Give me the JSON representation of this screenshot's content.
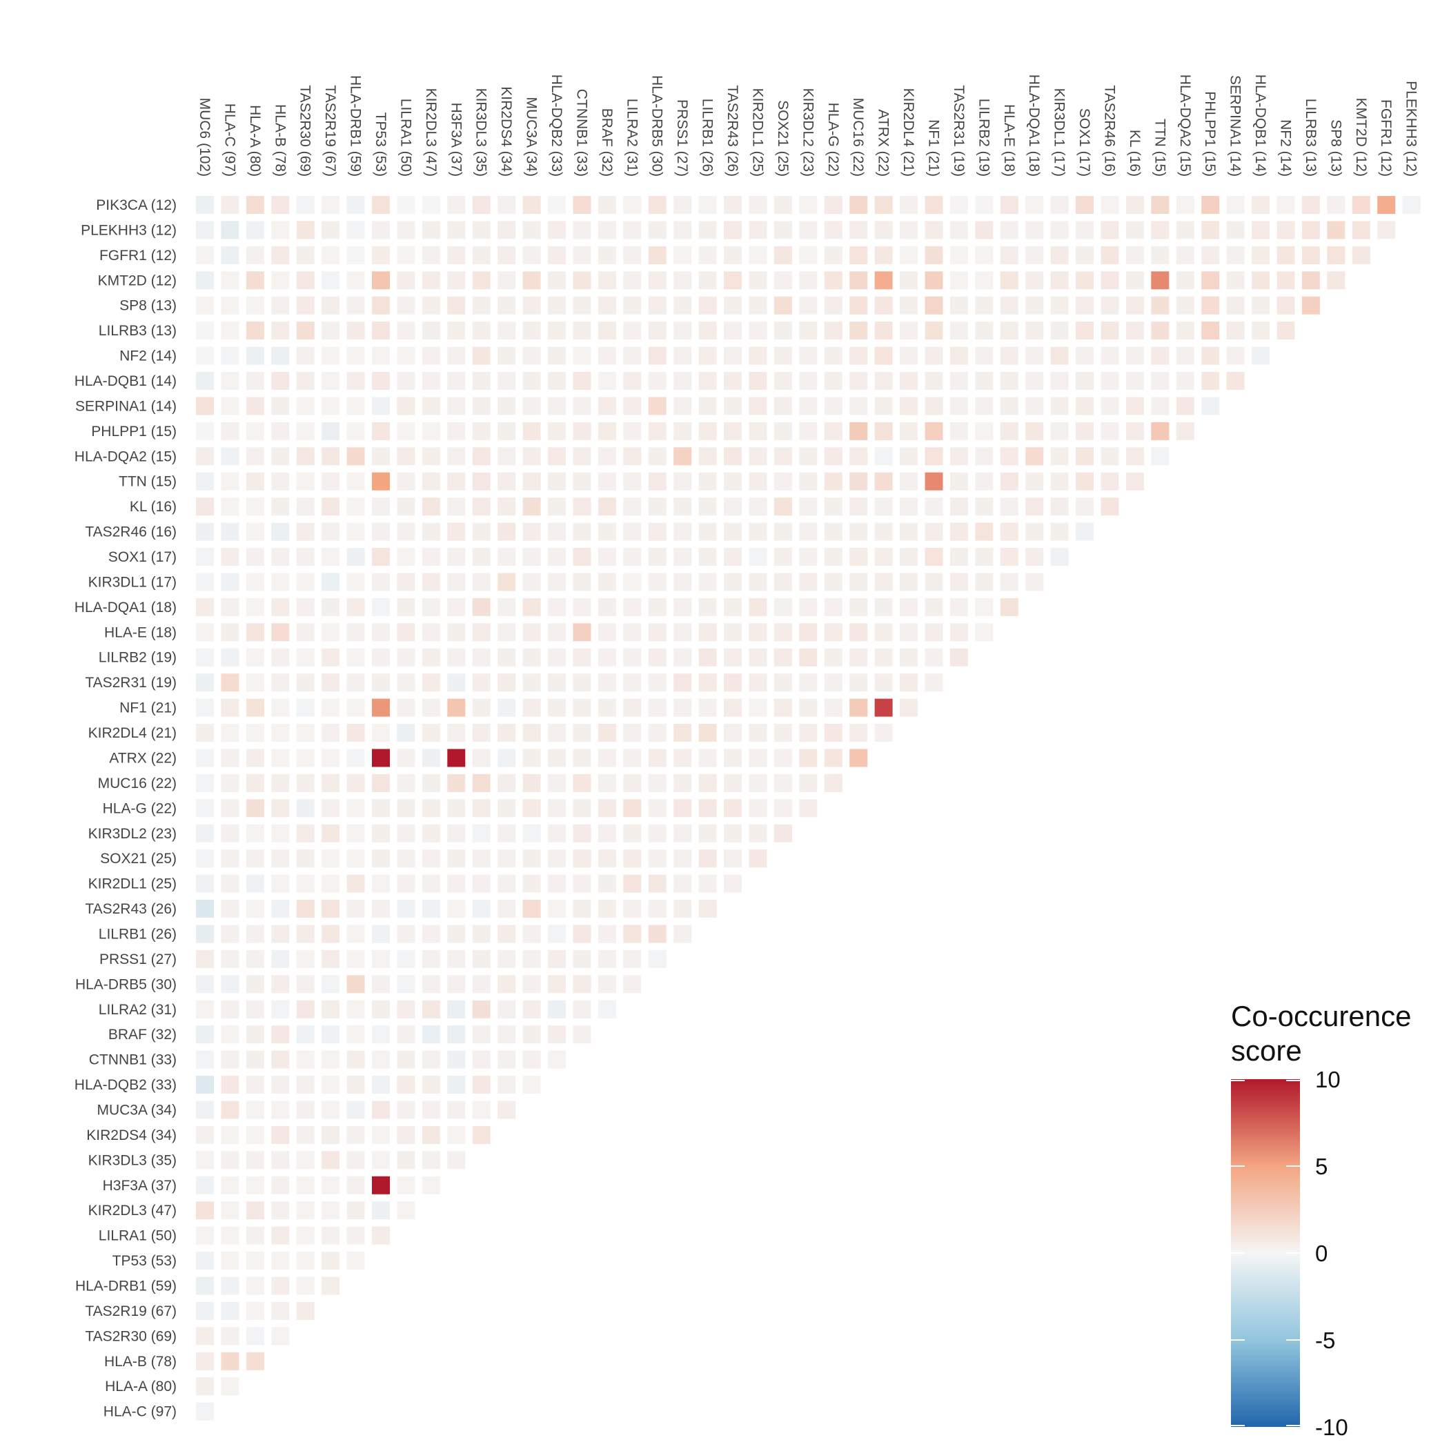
{
  "chart_data": {
    "type": "heatmap",
    "title": "",
    "xlabel": "",
    "ylabel": "",
    "col_labels": [
      "MUC6 (102)",
      "HLA-C (97)",
      "HLA-A (80)",
      "HLA-B (78)",
      "TAS2R30 (69)",
      "TAS2R19 (67)",
      "HLA-DRB1 (59)",
      "TP53 (53)",
      "LILRA1 (50)",
      "KIR2DL3 (47)",
      "H3F3A (37)",
      "KIR3DL3 (35)",
      "KIR2DS4 (34)",
      "MUC3A (34)",
      "HLA-DQB2 (33)",
      "CTNNB1 (33)",
      "BRAF (32)",
      "LILRA2 (31)",
      "HLA-DRB5 (30)",
      "PRSS1 (27)",
      "LILRB1 (26)",
      "TAS2R43 (26)",
      "KIR2DL1 (25)",
      "SOX21 (25)",
      "KIR3DL2 (23)",
      "HLA-G (22)",
      "MUC16 (22)",
      "ATRX (22)",
      "KIR2DL4 (21)",
      "NF1 (21)",
      "TAS2R31 (19)",
      "LILRB2 (19)",
      "HLA-E (18)",
      "HLA-DQA1 (18)",
      "KIR3DL1 (17)",
      "SOX1 (17)",
      "TAS2R46 (16)",
      "KL (16)",
      "TTN (15)",
      "HLA-DQA2 (15)",
      "PHLPP1 (15)",
      "SERPINA1 (14)",
      "HLA-DQB1 (14)",
      "NF2 (14)",
      "LILRB3 (13)",
      "SP8 (13)",
      "KMT2D (12)",
      "FGFR1 (12)",
      "PLEKHH3 (12)"
    ],
    "row_labels": [
      "PIK3CA (12)",
      "PLEKHH3 (12)",
      "FGFR1 (12)",
      "KMT2D (12)",
      "SP8 (13)",
      "LILRB3 (13)",
      "NF2 (14)",
      "HLA-DQB1 (14)",
      "SERPINA1 (14)",
      "PHLPP1 (15)",
      "HLA-DQA2 (15)",
      "TTN (15)",
      "KL (16)",
      "TAS2R46 (16)",
      "SOX1 (17)",
      "KIR3DL1 (17)",
      "HLA-DQA1 (18)",
      "HLA-E (18)",
      "LILRB2 (19)",
      "TAS2R31 (19)",
      "NF1 (21)",
      "KIR2DL4 (21)",
      "ATRX (22)",
      "MUC16 (22)",
      "HLA-G (22)",
      "KIR3DL2 (23)",
      "SOX21 (25)",
      "KIR2DL1 (25)",
      "TAS2R43 (26)",
      "LILRB1 (26)",
      "PRSS1 (27)",
      "HLA-DRB5 (30)",
      "LILRA2 (31)",
      "BRAF (32)",
      "CTNNB1 (33)",
      "HLA-DQB2 (33)",
      "MUC3A (34)",
      "KIR2DS4 (34)",
      "KIR3DL3 (35)",
      "H3F3A (37)",
      "KIR2DL3 (47)",
      "LILRA1 (50)",
      "TP53 (53)",
      "HLA-DRB1 (59)",
      "TAS2R19 (67)",
      "TAS2R30 (69)",
      "HLA-B (78)",
      "HLA-A (80)",
      "HLA-C (97)"
    ],
    "values": [
      [
        -0.5,
        0.5,
        1.5,
        0.8,
        -0.2,
        0.2,
        -0.3,
        1.2,
        0.0,
        0.0,
        0.3,
        0.8,
        0.3,
        0.9,
        0.0,
        1.5,
        0.4,
        0.2,
        1.0,
        0.3,
        0.2,
        0.5,
        0.3,
        0.4,
        0.2,
        0.7,
        1.8,
        1.2,
        0.3,
        1.2,
        0.1,
        0.1,
        0.8,
        0.2,
        0.3,
        1.5,
        0.2,
        0.6,
        1.8,
        0.2,
        2.3,
        0.2,
        0.6,
        0.2,
        0.8,
        0.3,
        1.5,
        4.5,
        -0.2
      ],
      [
        -0.3,
        -0.8,
        -0.3,
        0.2,
        0.9,
        0.4,
        -0.2,
        0.3,
        0.3,
        0.4,
        0.4,
        0.4,
        0.5,
        0.4,
        0.5,
        0.3,
        0.3,
        0.3,
        0.4,
        0.3,
        0.4,
        0.7,
        0.5,
        0.4,
        0.3,
        0.5,
        0.5,
        0.5,
        0.3,
        0.6,
        0.3,
        0.8,
        0.3,
        0.3,
        0.3,
        0.3,
        0.7,
        0.4,
        0.7,
        0.4,
        0.9,
        0.4,
        0.7,
        0.7,
        1.0,
        1.7,
        1.0,
        0.5
      ],
      [
        0.2,
        -0.5,
        0.3,
        0.7,
        0.4,
        0.2,
        0.0,
        0.6,
        0.2,
        0.3,
        0.5,
        0.4,
        0.5,
        0.3,
        0.5,
        0.3,
        0.4,
        0.3,
        1.2,
        0.2,
        0.3,
        0.4,
        0.2,
        0.9,
        0.2,
        0.4,
        1.1,
        0.8,
        0.2,
        1.3,
        0.2,
        0.2,
        0.5,
        0.3,
        0.7,
        0.4,
        0.9,
        0.3,
        0.4,
        0.3,
        0.5,
        0.3,
        0.6,
        0.9,
        1.0,
        1.1,
        0.8
      ],
      [
        -0.5,
        0.2,
        1.5,
        0.2,
        0.8,
        -0.2,
        0.2,
        3.0,
        0.5,
        0.6,
        0.5,
        1.0,
        0.3,
        1.4,
        0.4,
        0.9,
        0.5,
        0.3,
        0.5,
        0.3,
        0.4,
        1.1,
        0.4,
        0.3,
        0.3,
        1.0,
        1.8,
        4.5,
        0.4,
        2.3,
        0.2,
        0.2,
        0.9,
        0.5,
        0.7,
        0.9,
        0.8,
        0.4,
        6.0,
        0.4,
        2.0,
        0.4,
        0.9,
        0.9,
        1.8,
        0.8
      ],
      [
        0.2,
        0.2,
        0.2,
        0.3,
        0.7,
        0.5,
        0.3,
        1.2,
        0.3,
        0.4,
        0.8,
        0.4,
        0.4,
        0.5,
        0.4,
        0.4,
        0.5,
        0.4,
        0.5,
        0.4,
        0.7,
        0.4,
        0.4,
        1.4,
        0.3,
        0.5,
        1.2,
        0.9,
        0.4,
        2.0,
        0.4,
        0.4,
        0.5,
        0.4,
        0.4,
        0.5,
        0.5,
        0.6,
        1.3,
        0.4,
        1.5,
        0.5,
        0.4,
        0.8,
        2.3
      ],
      [
        0.0,
        0.2,
        1.5,
        0.6,
        1.4,
        0.3,
        0.7,
        1.0,
        0.3,
        0.4,
        0.4,
        0.4,
        0.3,
        0.4,
        0.4,
        0.4,
        0.6,
        0.3,
        0.5,
        0.3,
        0.6,
        0.3,
        0.3,
        0.4,
        0.4,
        0.7,
        1.3,
        1.0,
        0.3,
        1.2,
        0.3,
        0.4,
        0.5,
        0.4,
        0.4,
        0.9,
        0.8,
        0.6,
        1.3,
        0.4,
        2.0,
        0.6,
        0.4,
        0.9
      ],
      [
        0.0,
        -0.2,
        -0.5,
        -0.5,
        0.3,
        0.2,
        0.2,
        0.2,
        0.2,
        0.3,
        0.3,
        0.9,
        0.4,
        0.3,
        0.4,
        0.2,
        0.3,
        0.3,
        0.8,
        0.3,
        0.5,
        0.3,
        0.6,
        0.4,
        0.3,
        0.4,
        0.7,
        1.1,
        0.3,
        0.5,
        0.6,
        0.3,
        0.5,
        0.3,
        0.8,
        0.3,
        0.3,
        0.3,
        0.7,
        0.3,
        0.9,
        0.3,
        -0.3
      ],
      [
        -0.5,
        0.2,
        0.3,
        0.8,
        0.5,
        0.2,
        0.5,
        0.8,
        0.3,
        0.3,
        0.3,
        0.4,
        0.3,
        0.4,
        0.4,
        0.8,
        0.2,
        0.5,
        0.3,
        0.3,
        0.5,
        0.6,
        0.8,
        0.4,
        0.3,
        0.4,
        0.5,
        0.5,
        0.6,
        0.4,
        0.3,
        0.4,
        0.4,
        0.3,
        0.3,
        0.4,
        0.3,
        0.3,
        0.3,
        0.3,
        0.9,
        0.9
      ],
      [
        1.2,
        0.2,
        0.8,
        0.4,
        0.2,
        0.2,
        0.2,
        -0.3,
        0.6,
        0.4,
        0.3,
        0.4,
        0.4,
        0.3,
        0.3,
        0.3,
        0.6,
        0.5,
        1.6,
        0.3,
        0.4,
        0.4,
        0.7,
        0.5,
        0.3,
        0.3,
        0.3,
        0.4,
        0.6,
        0.6,
        0.3,
        0.3,
        0.4,
        0.3,
        0.4,
        0.6,
        0.3,
        0.7,
        0.3,
        0.8,
        -0.3
      ],
      [
        0.0,
        0.3,
        0.2,
        0.3,
        0.2,
        -0.6,
        0.2,
        0.9,
        0.2,
        0.2,
        0.3,
        0.4,
        0.4,
        0.8,
        0.4,
        0.7,
        0.6,
        0.3,
        0.6,
        0.4,
        0.6,
        0.6,
        0.5,
        0.4,
        0.3,
        0.6,
        2.6,
        1.2,
        0.4,
        2.3,
        0.3,
        0.2,
        0.7,
        0.8,
        0.3,
        0.7,
        0.3,
        0.6,
        2.8,
        0.6
      ],
      [
        0.5,
        -0.3,
        0.3,
        0.4,
        0.8,
        0.8,
        1.7,
        0.4,
        0.6,
        0.4,
        0.3,
        0.8,
        0.3,
        0.5,
        0.7,
        0.5,
        0.3,
        0.6,
        0.4,
        2.2,
        0.6,
        0.8,
        0.5,
        0.6,
        0.4,
        0.7,
        0.6,
        -0.2,
        0.4,
        1.1,
        0.5,
        0.3,
        0.7,
        1.6,
        0.4,
        0.9,
        0.4,
        0.6,
        -0.2
      ],
      [
        -0.3,
        0.2,
        0.6,
        0.3,
        0.2,
        0.3,
        0.2,
        5.0,
        0.3,
        0.5,
        0.6,
        0.8,
        0.5,
        0.6,
        0.4,
        0.4,
        0.3,
        0.3,
        0.7,
        0.3,
        0.4,
        0.4,
        0.5,
        0.3,
        0.4,
        0.9,
        1.3,
        1.5,
        0.3,
        6.0,
        0.4,
        0.3,
        0.8,
        0.4,
        0.4,
        1.0,
        0.7,
        0.7
      ],
      [
        0.8,
        0.2,
        0.2,
        0.4,
        0.3,
        0.8,
        0.2,
        0.3,
        0.4,
        0.9,
        0.3,
        0.7,
        0.6,
        1.3,
        0.4,
        0.7,
        0.9,
        0.3,
        0.4,
        0.4,
        0.4,
        0.3,
        0.3,
        1.2,
        0.3,
        0.4,
        0.5,
        0.3,
        0.3,
        0.3,
        0.5,
        0.4,
        0.3,
        0.7,
        0.5,
        0.3,
        1.0
      ],
      [
        -0.4,
        -0.4,
        0.2,
        -0.5,
        0.5,
        0.3,
        0.2,
        0.3,
        0.3,
        0.4,
        0.7,
        0.4,
        0.8,
        0.5,
        0.3,
        0.4,
        0.4,
        0.3,
        0.5,
        0.3,
        0.4,
        0.4,
        0.4,
        0.4,
        0.3,
        0.4,
        0.4,
        0.4,
        0.4,
        0.5,
        0.7,
        1.1,
        0.7,
        0.4,
        0.4,
        -0.3
      ],
      [
        -0.2,
        0.5,
        0.3,
        0.3,
        0.3,
        0.2,
        -0.4,
        1.0,
        0.2,
        0.3,
        0.3,
        0.4,
        0.3,
        0.3,
        0.3,
        0.8,
        0.3,
        0.3,
        0.4,
        0.3,
        0.4,
        0.5,
        -0.2,
        0.4,
        0.3,
        0.4,
        0.6,
        0.5,
        0.4,
        1.1,
        0.4,
        0.4,
        0.7,
        0.5,
        -0.3
      ],
      [
        -0.2,
        -0.3,
        0.2,
        0.2,
        0.2,
        -0.5,
        0.2,
        0.3,
        0.5,
        0.6,
        0.3,
        0.3,
        1.2,
        0.3,
        0.3,
        0.4,
        0.4,
        0.2,
        0.3,
        0.3,
        0.3,
        0.4,
        0.4,
        0.5,
        0.5,
        0.4,
        0.4,
        0.5,
        0.4,
        0.4,
        0.5,
        0.4,
        0.3,
        0.3
      ],
      [
        0.6,
        0.3,
        0.2,
        0.6,
        0.3,
        0.4,
        0.6,
        -0.2,
        0.4,
        0.3,
        0.3,
        1.3,
        0.3,
        0.9,
        0.3,
        0.3,
        0.4,
        0.3,
        0.4,
        0.3,
        0.4,
        0.4,
        0.8,
        0.3,
        0.3,
        0.3,
        0.4,
        0.4,
        0.3,
        0.4,
        0.3,
        0.2,
        1.2
      ],
      [
        0.2,
        0.4,
        1.0,
        1.5,
        0.3,
        0.2,
        0.3,
        0.3,
        0.7,
        0.3,
        0.4,
        0.6,
        0.3,
        0.5,
        0.3,
        2.3,
        0.3,
        0.3,
        0.5,
        0.3,
        0.6,
        0.4,
        0.6,
        0.6,
        0.8,
        0.6,
        0.8,
        0.4,
        0.3,
        0.5,
        0.5,
        0.2
      ],
      [
        -0.2,
        -0.3,
        0.2,
        0.3,
        0.2,
        0.6,
        0.2,
        0.3,
        0.3,
        0.4,
        0.3,
        0.3,
        0.4,
        0.4,
        0.3,
        0.5,
        0.3,
        0.3,
        0.5,
        0.3,
        0.8,
        0.5,
        0.5,
        0.7,
        0.9,
        0.4,
        0.5,
        0.4,
        0.4,
        0.3,
        0.8
      ],
      [
        -0.5,
        1.6,
        0.2,
        0.3,
        0.4,
        0.6,
        0.3,
        0.4,
        0.3,
        0.6,
        -0.4,
        0.5,
        0.6,
        0.4,
        0.4,
        0.4,
        0.3,
        0.3,
        0.3,
        0.8,
        0.7,
        0.8,
        0.5,
        0.4,
        0.3,
        0.3,
        0.4,
        0.4,
        0.6,
        0.3
      ],
      [
        -0.2,
        0.6,
        1.2,
        0.2,
        -0.2,
        0.2,
        0.2,
        5.5,
        0.3,
        0.3,
        3.0,
        0.4,
        -0.3,
        0.5,
        0.4,
        0.4,
        0.4,
        0.5,
        0.3,
        0.3,
        0.3,
        0.6,
        0.2,
        0.6,
        0.4,
        0.3,
        2.6,
        8.5,
        0.6
      ],
      [
        0.4,
        0.2,
        0.2,
        0.2,
        0.2,
        0.3,
        0.8,
        0.2,
        -0.5,
        0.4,
        0.3,
        0.5,
        0.6,
        0.6,
        0.3,
        0.4,
        0.8,
        0.3,
        0.3,
        0.9,
        1.2,
        0.3,
        0.4,
        0.4,
        0.5,
        0.8,
        0.5,
        0.3
      ],
      [
        -0.2,
        0.3,
        0.5,
        0.2,
        0.2,
        0.2,
        -0.2,
        10.0,
        0.3,
        -0.4,
        10.0,
        0.3,
        -0.3,
        0.4,
        0.4,
        0.4,
        0.3,
        0.3,
        0.6,
        0.5,
        0.3,
        0.4,
        0.3,
        0.3,
        0.9,
        1.0,
        3.0
      ],
      [
        -0.2,
        0.3,
        0.6,
        0.4,
        0.4,
        0.6,
        0.6,
        1.0,
        0.3,
        0.4,
        1.3,
        1.4,
        0.5,
        0.8,
        0.3,
        0.9,
        0.3,
        0.4,
        0.3,
        0.4,
        0.6,
        0.4,
        0.3,
        0.3,
        0.4,
        0.7
      ],
      [
        -0.2,
        0.3,
        1.3,
        0.6,
        -0.4,
        0.3,
        0.2,
        0.4,
        0.4,
        0.4,
        0.4,
        0.6,
        0.4,
        0.7,
        0.3,
        0.4,
        0.7,
        1.2,
        0.3,
        0.8,
        0.8,
        0.8,
        0.3,
        0.3,
        0.5
      ],
      [
        -0.3,
        0.3,
        0.2,
        0.2,
        0.6,
        0.8,
        0.2,
        0.4,
        0.3,
        0.4,
        0.3,
        -0.2,
        0.3,
        -0.2,
        0.3,
        0.7,
        0.3,
        0.4,
        0.3,
        0.3,
        0.4,
        0.4,
        0.4,
        0.8
      ],
      [
        -0.2,
        0.3,
        0.3,
        0.3,
        0.4,
        0.2,
        0.2,
        0.4,
        0.3,
        0.3,
        0.4,
        0.3,
        0.3,
        0.4,
        0.3,
        0.6,
        0.5,
        0.6,
        0.3,
        0.3,
        0.8,
        0.3,
        0.8
      ],
      [
        -0.3,
        0.3,
        -0.3,
        0.2,
        0.2,
        0.2,
        0.8,
        0.2,
        0.3,
        0.3,
        0.3,
        0.3,
        0.3,
        0.4,
        0.3,
        0.3,
        0.4,
        1.0,
        0.8,
        0.3,
        0.3,
        0.3
      ],
      [
        -1.3,
        0.3,
        0.2,
        -0.3,
        1.2,
        1.0,
        0.3,
        0.3,
        -0.3,
        -0.3,
        0.2,
        -0.3,
        0.3,
        1.5,
        0.2,
        0.4,
        0.4,
        0.3,
        0.3,
        0.4,
        0.6
      ],
      [
        -0.7,
        0.3,
        0.3,
        0.5,
        0.6,
        0.8,
        0.2,
        -0.3,
        0.3,
        0.3,
        0.4,
        0.4,
        0.6,
        0.3,
        -0.2,
        0.8,
        0.3,
        1.0,
        1.3,
        0.3
      ],
      [
        0.6,
        0.3,
        0.3,
        -0.3,
        0.2,
        0.6,
        0.2,
        0.2,
        -0.2,
        0.3,
        0.3,
        0.4,
        0.3,
        0.3,
        0.5,
        0.4,
        0.3,
        0.3,
        -0.2
      ],
      [
        -0.3,
        -0.3,
        0.4,
        0.5,
        0.3,
        -0.2,
        1.7,
        0.3,
        -0.2,
        0.3,
        0.3,
        0.3,
        0.6,
        0.3,
        0.6,
        0.6,
        0.3,
        0.3
      ],
      [
        0.2,
        0.3,
        0.3,
        -0.2,
        0.8,
        0.5,
        0.2,
        0.4,
        0.5,
        0.8,
        -0.6,
        1.3,
        0.3,
        0.5,
        -0.5,
        0.3,
        -0.2
      ],
      [
        -0.5,
        0.2,
        0.4,
        0.8,
        -0.3,
        -0.3,
        0.2,
        -0.2,
        0.3,
        -0.6,
        -0.6,
        0.3,
        0.3,
        0.4,
        0.5,
        0.3
      ],
      [
        -0.2,
        0.3,
        0.4,
        0.7,
        0.2,
        0.2,
        0.5,
        0.2,
        0.4,
        0.3,
        -0.4,
        0.3,
        0.3,
        0.3,
        0.2
      ],
      [
        -1.2,
        0.8,
        0.3,
        0.3,
        0.3,
        0.2,
        0.4,
        -0.3,
        0.6,
        0.4,
        -0.5,
        0.8,
        0.3,
        0.2
      ],
      [
        -0.3,
        1.0,
        0.2,
        0.2,
        0.3,
        0.2,
        -0.3,
        0.8,
        0.3,
        0.3,
        0.3,
        0.2,
        0.5
      ],
      [
        0.3,
        0.2,
        0.2,
        0.8,
        0.3,
        0.5,
        0.3,
        0.2,
        0.5,
        0.8,
        0.2,
        1.0
      ],
      [
        0.2,
        0.3,
        0.3,
        0.3,
        0.2,
        0.8,
        0.3,
        0.2,
        0.4,
        0.3,
        0.3
      ],
      [
        -0.3,
        0.2,
        0.2,
        0.3,
        0.2,
        0.2,
        0.3,
        10.0,
        0.2,
        0.2
      ],
      [
        1.2,
        0.2,
        0.8,
        0.3,
        0.2,
        0.2,
        0.4,
        -0.4,
        0.2
      ],
      [
        0.2,
        0.2,
        0.3,
        0.6,
        0.2,
        0.3,
        0.3,
        0.6
      ],
      [
        -0.3,
        0.2,
        0.2,
        0.2,
        0.2,
        0.4,
        0.2
      ],
      [
        -0.5,
        -0.3,
        0.2,
        0.5,
        0.2,
        0.5
      ],
      [
        -0.3,
        -0.3,
        0.2,
        0.3,
        0.6
      ],
      [
        0.5,
        0.3,
        -0.2,
        0.2
      ],
      [
        0.6,
        1.7,
        1.4
      ],
      [
        0.4,
        0.2
      ],
      [
        -0.2
      ]
    ],
    "legend": {
      "title_lines": [
        "Co-occurence",
        "score"
      ],
      "ticks": [
        10,
        5,
        0,
        -5,
        -10
      ],
      "range": [
        -10,
        10
      ],
      "position": "bottom-right"
    },
    "colors": {
      "low": "#2166ac",
      "mid_low": "#92c5de",
      "mid": "#f5f5f5",
      "mid_high": "#f4a582",
      "high": "#b2182b"
    }
  }
}
